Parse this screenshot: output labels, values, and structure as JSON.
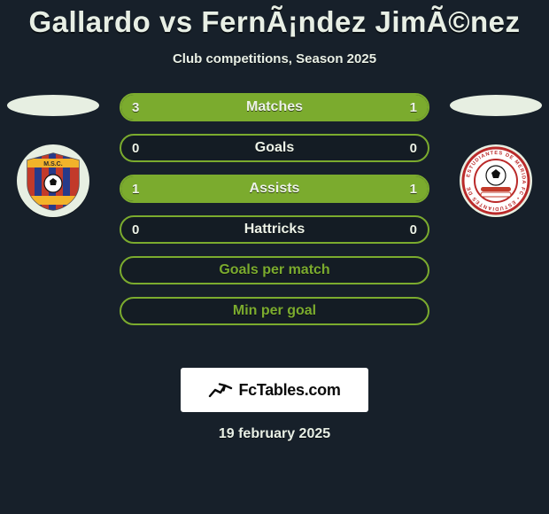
{
  "colors": {
    "background": "#17202a",
    "text": "#e8efe5",
    "accent": "#7bab2e",
    "ellipse": "#e7efe2",
    "logo_bg": "#ffffff",
    "logo_text": "#0b0b0b"
  },
  "title": "Gallardo vs FernÃ¡ndez JimÃ©nez",
  "subtitle": "Club competitions, Season 2025",
  "rows": [
    {
      "label": "Matches",
      "left": "3",
      "right": "1",
      "left_pct": 75,
      "right_pct": 25
    },
    {
      "label": "Goals",
      "left": "0",
      "right": "0",
      "left_pct": 0,
      "right_pct": 0
    },
    {
      "label": "Assists",
      "left": "1",
      "right": "1",
      "left_pct": 50,
      "right_pct": 50
    },
    {
      "label": "Hattricks",
      "left": "0",
      "right": "0",
      "left_pct": 0,
      "right_pct": 0
    }
  ],
  "plain_rows": [
    {
      "label": "Goals per match"
    },
    {
      "label": "Min per goal"
    }
  ],
  "logo_text": "FcTables.com",
  "date_text": "19 february 2025",
  "badges": {
    "left": {
      "initials": "M.S.C.",
      "bg": "#e7efe2",
      "stripe_a": "#c23a2a",
      "stripe_b": "#273a8a",
      "band_top": "#f2b32a",
      "band_bottom": "#f2b32a"
    },
    "right": {
      "ring_text": "ESTUDIANTES DE MERIDA FC",
      "bg": "#e7efe2",
      "ring_outer": "#ba2a2a",
      "ring_inner": "#ffffff",
      "ball_stripe": "#c23a2a"
    }
  }
}
